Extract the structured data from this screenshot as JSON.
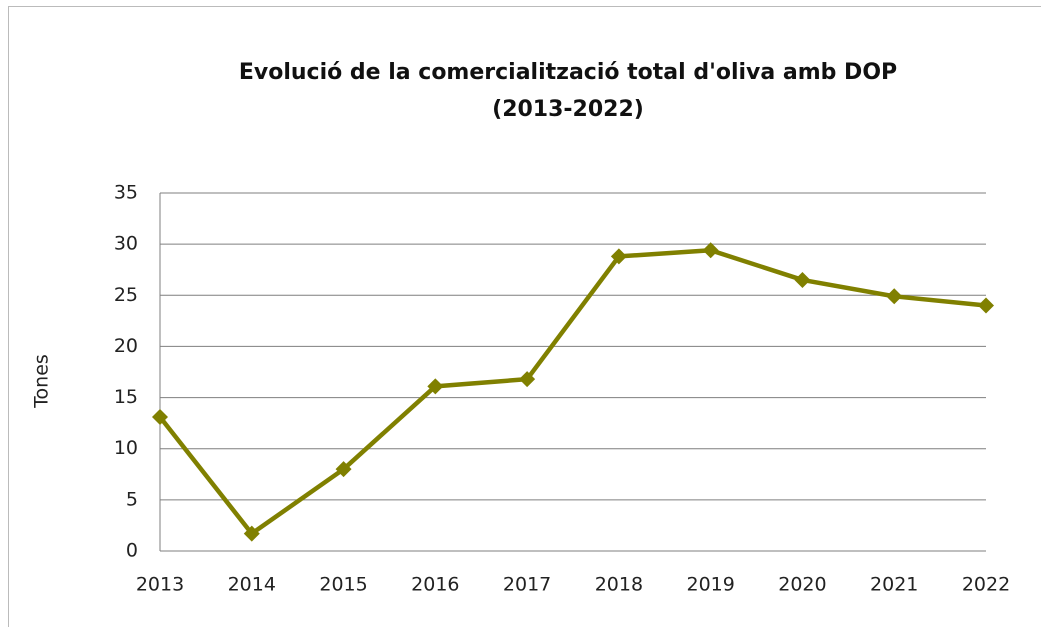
{
  "chart_data": {
    "type": "line",
    "title": "Evolució de la comercialització total d'oliva amb DOP",
    "subtitle": "(2013-2022)",
    "y_label": "Tones",
    "categories": [
      "2013",
      "2014",
      "2015",
      "2016",
      "2017",
      "2018",
      "2019",
      "2020",
      "2021",
      "2022"
    ],
    "series": [
      {
        "name": "Tones",
        "color": "#808000",
        "values": [
          13.1,
          1.7,
          8.0,
          16.1,
          16.8,
          28.8,
          29.4,
          26.5,
          24.9,
          24.0
        ]
      }
    ],
    "ylim": [
      0,
      35
    ],
    "yticks": [
      0,
      5,
      10,
      15,
      20,
      25,
      30,
      35
    ],
    "grid": true,
    "legend": false
  }
}
